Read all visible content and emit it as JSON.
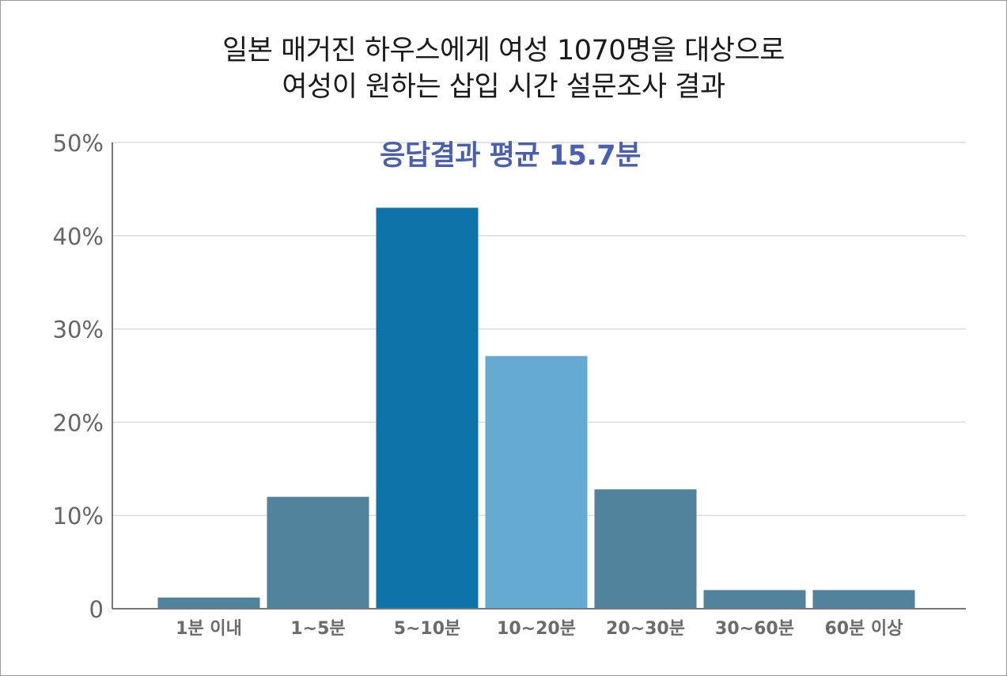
{
  "title_line1": "일본 매거진 하우스에게 여성 1070명을 대상으로",
  "title_line2": "여성이 원하는 삽입 시간 설문조사 결과",
  "subtitle": "응답결과 평균 15.7분",
  "chart_data": {
    "type": "bar",
    "categories": [
      "1분 이내",
      "1~5분",
      "5~10분",
      "10~20분",
      "20~30분",
      "30~60분",
      "60분 이상"
    ],
    "values": [
      1.2,
      12,
      43,
      27.1,
      12.8,
      2,
      2
    ],
    "ylim": [
      0,
      50
    ],
    "yticks": [
      0,
      10,
      20,
      30,
      40,
      50
    ],
    "ytick_labels": [
      "0",
      "10%",
      "20%",
      "30%",
      "40%",
      "50%"
    ],
    "grid": true,
    "bar_colors": [
      "#52839c",
      "#52839c",
      "#0d73a9",
      "#64aad1",
      "#52839c",
      "#52839c",
      "#52839c"
    ],
    "grid_color": "#dcdcdc",
    "axis_color": "#777777"
  }
}
